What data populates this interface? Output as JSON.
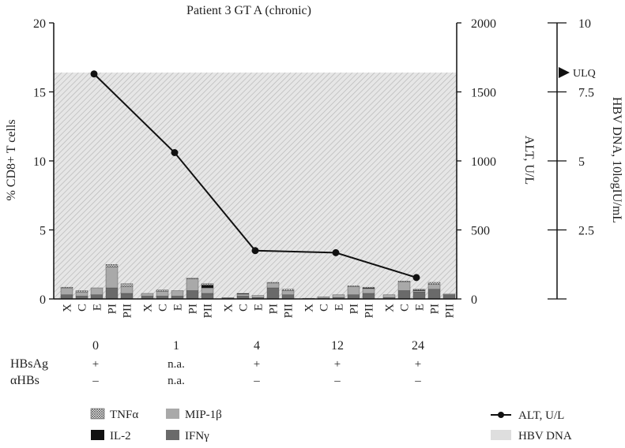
{
  "chart_data": {
    "type": "bar",
    "title": "Patient 3 GT A (chronic)",
    "ylabel_left": "% CD8+ T cells",
    "ylabel_mid": "ALT, U/L",
    "ylabel_right": "HBV DNA, 10logIU/mL",
    "ylim_left": [
      0,
      20
    ],
    "ylim_mid": [
      0,
      2000
    ],
    "ylim_right": [
      0,
      10
    ],
    "yticks_left": [
      0,
      5,
      10,
      15,
      20
    ],
    "yticks_mid": [
      0,
      500,
      1000,
      1500,
      2000
    ],
    "yticks_right": [
      "2.5",
      "5",
      "7.5",
      "10"
    ],
    "yticks_right_values": [
      2.5,
      5,
      7.5,
      10
    ],
    "ulq_label": "ULQ",
    "ulq_value": 8.2,
    "hbv_dna_level": 8.2,
    "stimuli": [
      "X",
      "C",
      "E",
      "PI",
      "PII"
    ],
    "timepoints": [
      "0",
      "1",
      "4",
      "12",
      "24"
    ],
    "alt_values": [
      1630,
      1060,
      350,
      335,
      155
    ],
    "cytokine_colors": {
      "IFNg": "#6a6a6a",
      "MIP1b": "#a9a9a9",
      "IL2": "#111111",
      "TNFa": "#cfcfcf"
    },
    "series": [
      {
        "name": "IFNγ",
        "key": "IFNg",
        "values": [
          [
            0.3,
            0.2,
            0.3,
            0.8,
            0.4
          ],
          [
            0.2,
            0.2,
            0.2,
            0.6,
            0.4
          ],
          [
            0.05,
            0.2,
            0.1,
            0.8,
            0.3
          ],
          [
            0.0,
            0.05,
            0.1,
            0.3,
            0.4
          ],
          [
            0.1,
            0.6,
            0.5,
            0.7,
            0.3
          ]
        ]
      },
      {
        "name": "MIP-1β",
        "key": "MIP1b",
        "values": [
          [
            0.5,
            0.3,
            0.5,
            1.5,
            0.5
          ],
          [
            0.2,
            0.35,
            0.4,
            0.85,
            0.4
          ],
          [
            0.05,
            0.15,
            0.15,
            0.35,
            0.3
          ],
          [
            0.05,
            0.1,
            0.2,
            0.6,
            0.35
          ],
          [
            0.2,
            0.65,
            0.1,
            0.35,
            0.05
          ]
        ]
      },
      {
        "name": "IL-2",
        "key": "IL2",
        "values": [
          [
            0.0,
            0.0,
            0.0,
            0.0,
            0.0
          ],
          [
            0.0,
            0.0,
            0.0,
            0.0,
            0.2
          ],
          [
            0.0,
            0.05,
            0.0,
            0.0,
            0.0
          ],
          [
            0.0,
            0.0,
            0.0,
            0.0,
            0.05
          ],
          [
            0.0,
            0.0,
            0.05,
            0.0,
            0.0
          ]
        ]
      },
      {
        "name": "TNFα",
        "key": "TNFa",
        "values": [
          [
            0.05,
            0.1,
            0.0,
            0.2,
            0.2
          ],
          [
            0.0,
            0.1,
            0.0,
            0.05,
            0.1
          ],
          [
            0.0,
            0.0,
            0.0,
            0.05,
            0.1
          ],
          [
            0.0,
            0.0,
            0.0,
            0.05,
            0.05
          ],
          [
            0.0,
            0.05,
            0.05,
            0.15,
            0.0
          ]
        ]
      }
    ],
    "rows": [
      {
        "label": "HBsAg",
        "values": [
          "+",
          "n.a.",
          "+",
          "+",
          "+"
        ]
      },
      {
        "label": "αHBs",
        "values": [
          "–",
          "n.a.",
          "–",
          "–",
          "–"
        ]
      }
    ],
    "legend": {
      "tnfa": "TNFα",
      "il2": "IL-2",
      "mip": "MIP-1β",
      "ifng": "IFNγ",
      "alt": "ALT, U/L",
      "hbv": "HBV DNA"
    }
  }
}
